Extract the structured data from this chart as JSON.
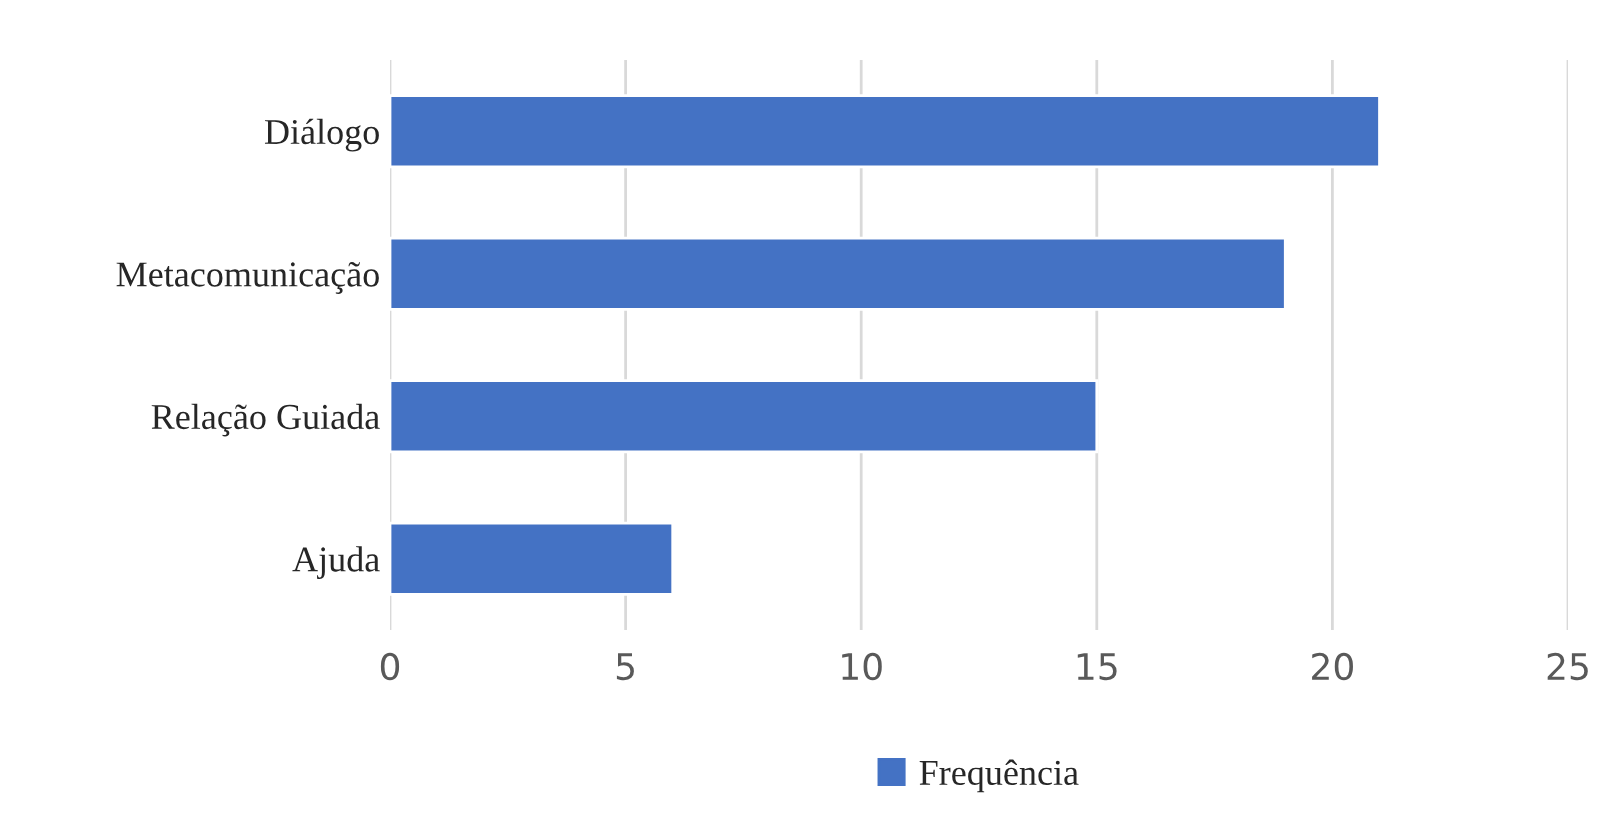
{
  "chart_data": {
    "type": "bar",
    "orientation": "horizontal",
    "categories": [
      "Diálogo",
      "Metacomunicação",
      "Relação Guiada",
      "Ajuda"
    ],
    "series": [
      {
        "name": "Frequência",
        "color": "#4472c4",
        "values": [
          21,
          19,
          15,
          6
        ]
      }
    ],
    "xlim": [
      0,
      25
    ],
    "xticks": [
      0,
      5,
      10,
      15,
      20,
      25
    ],
    "grid": "x",
    "legend": "bottom"
  }
}
